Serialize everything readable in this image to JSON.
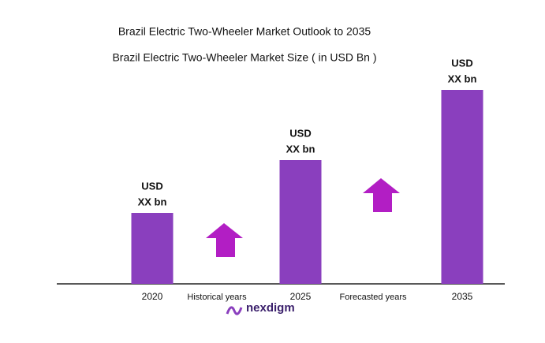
{
  "chart_data": {
    "type": "bar",
    "title": "Brazil Electric Two-Wheeler Market Outlook to 2035",
    "subtitle": "Brazil Electric Two-Wheeler Market Size ( in USD Bn )",
    "categories": [
      "2020",
      "2025",
      "2035"
    ],
    "values": [
      90,
      157,
      246
    ],
    "bar_labels": [
      [
        "USD",
        "XX bn"
      ],
      [
        "USD",
        "XX bn"
      ],
      [
        "USD",
        "XX bn"
      ]
    ],
    "color": "#8a3fbe",
    "ylim": [
      0,
      260
    ],
    "annotations": [
      "Historical years",
      "Forecasted years"
    ],
    "logo": "nexdigm"
  }
}
